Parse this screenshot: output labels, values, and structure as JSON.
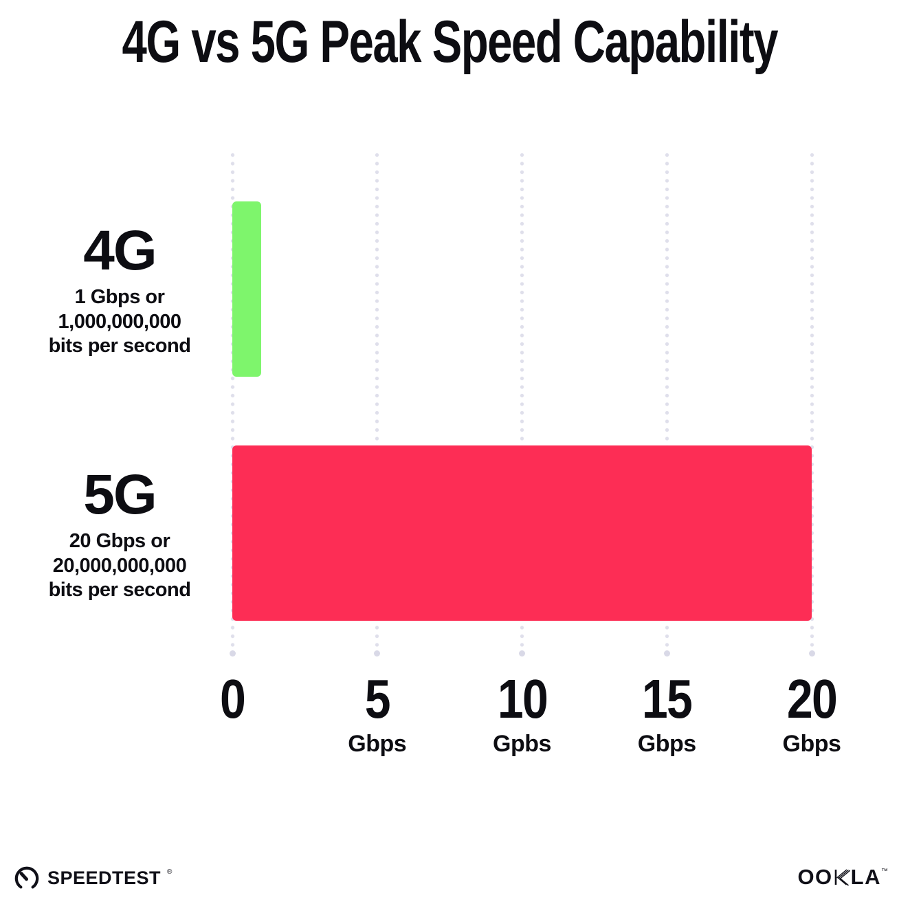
{
  "title": "4G vs 5G Peak Speed Capability",
  "chart_data": {
    "type": "bar",
    "orientation": "horizontal",
    "title": "4G vs 5G Peak Speed Capability",
    "categories": [
      "4G",
      "5G"
    ],
    "values": [
      1,
      20
    ],
    "value_unit": "Gbps",
    "bar_colors": [
      "#7EF56C",
      "#FD2D55"
    ],
    "grid_color": "#DFDFEB",
    "grid_end_color": "#D9D9E7",
    "grid": "vertical-dotted",
    "row_labels": [
      {
        "name": "4G",
        "detail_lines": [
          "1 Gbps or",
          "1,000,000,000",
          "bits per second"
        ]
      },
      {
        "name": "5G",
        "detail_lines": [
          "20 Gbps or",
          "20,000,000,000",
          "bits per second"
        ]
      }
    ],
    "x_axis": {
      "range": [
        0,
        20
      ],
      "ticks": [
        {
          "value": "0",
          "unit": ""
        },
        {
          "value": "5",
          "unit": "Gbps"
        },
        {
          "value": "10",
          "unit": "Gpbs"
        },
        {
          "value": "15",
          "unit": "Gbps"
        },
        {
          "value": "20",
          "unit": "Gbps"
        }
      ]
    }
  },
  "footer": {
    "speedtest_label": "SPEEDTEST",
    "speedtest_mark": "®",
    "ookla_prefix": "OO",
    "ookla_k": "K",
    "ookla_suffix": "LA",
    "ookla_label": "OOKLA",
    "ookla_mark": "™"
  }
}
